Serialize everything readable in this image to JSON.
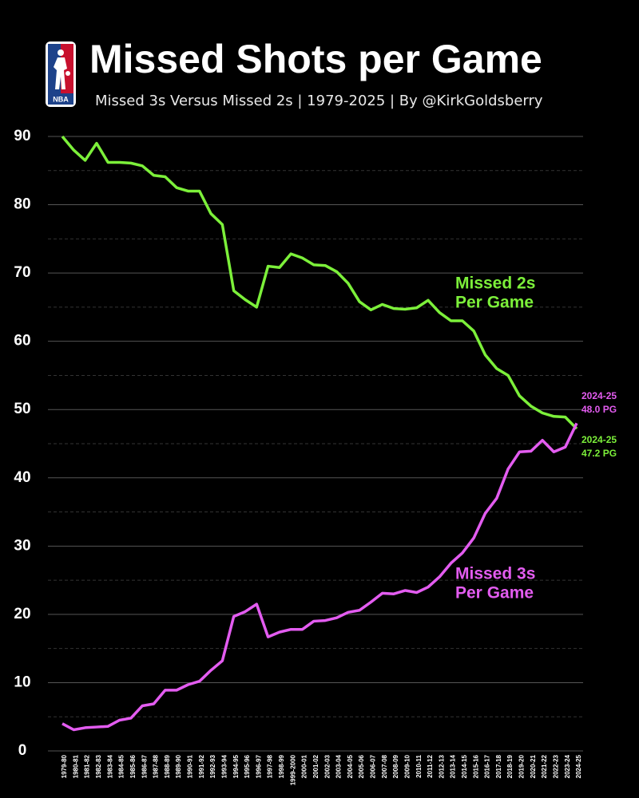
{
  "chart_data": {
    "type": "line",
    "title": "Missed Shots per Game",
    "subtitle": "Missed 3s Versus Missed 2s | 1979-2025 | By @KirkGoldsberry",
    "logo_text": "NBA",
    "categories": [
      "1979-80",
      "1980-81",
      "1981-82",
      "1982-83",
      "1983-84",
      "1984-85",
      "1985-86",
      "1986-87",
      "1987-88",
      "1988-89",
      "1989-90",
      "1990-91",
      "1991-92",
      "1992-93",
      "1993-94",
      "1994-95",
      "1995-96",
      "1996-97",
      "1997-98",
      "1998-99",
      "1999-2000",
      "2000-01",
      "2001-02",
      "2002-03",
      "2003-04",
      "2004-05",
      "2005-06",
      "2006-07",
      "2007-08",
      "2008-09",
      "2009-10",
      "2010-11",
      "2011-12",
      "2012-13",
      "2013-14",
      "2014-15",
      "2015-16",
      "2016-17",
      "2017-18",
      "2018-19",
      "2019-20",
      "2020-21",
      "2021-22",
      "2022-23",
      "2023-24",
      "2024-25"
    ],
    "series": [
      {
        "name": "Missed 2s Per Game",
        "label_lines": [
          "Missed 2s",
          "Per Game"
        ],
        "color": "#7cf03a",
        "values": [
          90,
          88,
          86.5,
          89,
          86.2,
          86.2,
          86.1,
          85.7,
          84.3,
          84.1,
          82.5,
          82,
          82,
          78.7,
          77.1,
          67.4,
          66.1,
          65,
          71,
          70.8,
          72.8,
          72.2,
          71.2,
          71.1,
          70.2,
          68.5,
          65.8,
          64.6,
          65.4,
          64.8,
          64.7,
          64.9,
          66,
          64.2,
          63,
          63,
          61.5,
          58,
          56,
          55,
          52,
          50.5,
          49.5,
          49,
          48.9,
          47.2
        ],
        "end_label": {
          "season": "2024-25",
          "value": 47.2,
          "value_label": "47.2 PG"
        }
      },
      {
        "name": "Missed 3s Per Game",
        "label_lines": [
          "Missed 3s",
          "Per Game"
        ],
        "color": "#e35cf0",
        "values": [
          4,
          3.1,
          3.4,
          3.5,
          3.6,
          4.5,
          4.8,
          6.6,
          6.9,
          8.9,
          8.9,
          9.7,
          10.2,
          11.8,
          13.2,
          19.7,
          20.4,
          21.5,
          16.7,
          17.4,
          17.8,
          17.8,
          19,
          19.1,
          19.5,
          20.3,
          20.6,
          21.8,
          23.1,
          23,
          23.5,
          23.2,
          24,
          25.5,
          27.5,
          29,
          31.2,
          34.8,
          37,
          41.3,
          43.8,
          43.9,
          45.5,
          43.8,
          44.5,
          48
        ],
        "end_label": {
          "season": "2024-25",
          "value": 48.0,
          "value_label": "48.0 PG"
        }
      }
    ],
    "ylim": [
      0,
      90
    ],
    "yticks": [
      0,
      10,
      20,
      30,
      40,
      50,
      60,
      70,
      80,
      90
    ],
    "minor_yticks": [
      5,
      15,
      25,
      35,
      45,
      55,
      65,
      75,
      85
    ],
    "grid": true
  }
}
